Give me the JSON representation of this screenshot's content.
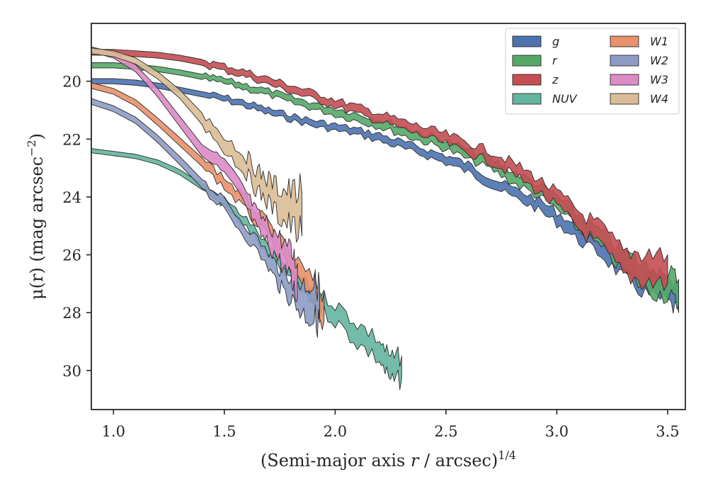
{
  "chart_data": {
    "type": "area",
    "xlabel_main": "(Semi-major axis ",
    "xlabel_var": "r",
    "xlabel_rest": " / arcsec)",
    "xlabel_sup": "1/4",
    "ylabel_main": "μ(r) (mag arcsec",
    "ylabel_sup": "−2",
    "ylabel_close": ")",
    "xlim": [
      0.9,
      3.58
    ],
    "ylim": [
      31.35,
      18.0
    ],
    "y_inverted": true,
    "xticks": [
      "1.0",
      "1.5",
      "2.0",
      "2.5",
      "3.0",
      "3.5"
    ],
    "yticks": [
      "20",
      "22",
      "24",
      "26",
      "28",
      "30"
    ],
    "legend_placement": "upper right, 2 columns",
    "series": [
      {
        "name": "g",
        "color": "#4c72b0",
        "x": [
          0.9,
          1.0,
          1.1,
          1.2,
          1.3,
          1.4,
          1.5,
          1.6,
          1.7,
          1.8,
          1.9,
          2.0,
          2.1,
          2.2,
          2.3,
          2.4,
          2.5,
          2.6,
          2.7,
          2.8,
          2.9,
          3.0,
          3.1,
          3.2,
          3.3,
          3.4,
          3.5,
          3.55
        ],
        "y": [
          20.0,
          20.0,
          20.05,
          20.15,
          20.3,
          20.45,
          20.6,
          20.8,
          21.05,
          21.25,
          21.45,
          21.6,
          21.75,
          21.95,
          22.2,
          22.45,
          22.7,
          23.0,
          23.45,
          23.85,
          24.2,
          24.7,
          25.3,
          25.75,
          26.5,
          27.0,
          27.3,
          27.6
        ],
        "w": [
          0.18,
          0.18,
          0.18,
          0.18,
          0.18,
          0.18,
          0.18,
          0.2,
          0.2,
          0.2,
          0.22,
          0.22,
          0.22,
          0.25,
          0.25,
          0.25,
          0.28,
          0.3,
          0.3,
          0.32,
          0.35,
          0.4,
          0.45,
          0.5,
          0.6,
          0.7,
          0.7,
          0.8
        ]
      },
      {
        "name": "r",
        "color": "#55a868",
        "x": [
          0.9,
          1.0,
          1.1,
          1.2,
          1.3,
          1.4,
          1.5,
          1.6,
          1.7,
          1.8,
          1.9,
          2.0,
          2.1,
          2.2,
          2.3,
          2.4,
          2.5,
          2.6,
          2.7,
          2.8,
          2.9,
          3.0,
          3.1,
          3.2,
          3.3,
          3.4,
          3.5,
          3.55
        ],
        "y": [
          19.45,
          19.45,
          19.5,
          19.58,
          19.7,
          19.85,
          20.0,
          20.2,
          20.4,
          20.65,
          20.85,
          21.05,
          21.25,
          21.45,
          21.7,
          21.95,
          22.2,
          22.55,
          22.85,
          23.3,
          23.7,
          24.2,
          24.9,
          25.5,
          26.2,
          26.8,
          27.0,
          27.3
        ],
        "w": [
          0.18,
          0.18,
          0.18,
          0.18,
          0.18,
          0.18,
          0.18,
          0.2,
          0.2,
          0.22,
          0.22,
          0.25,
          0.25,
          0.28,
          0.3,
          0.3,
          0.3,
          0.32,
          0.35,
          0.4,
          0.4,
          0.45,
          0.5,
          0.55,
          0.65,
          0.8,
          0.8,
          0.9
        ]
      },
      {
        "name": "z",
        "color": "#c44e52",
        "x": [
          0.9,
          1.0,
          1.1,
          1.2,
          1.3,
          1.4,
          1.5,
          1.6,
          1.7,
          1.8,
          1.9,
          2.0,
          2.1,
          2.2,
          2.3,
          2.4,
          2.5,
          2.6,
          2.7,
          2.8,
          2.9,
          3.0,
          3.1,
          3.2,
          3.3,
          3.4,
          3.5
        ],
        "y": [
          19.0,
          19.0,
          19.05,
          19.1,
          19.2,
          19.35,
          19.55,
          19.75,
          20.0,
          20.25,
          20.5,
          20.75,
          21.0,
          21.25,
          21.5,
          21.75,
          22.0,
          22.3,
          22.6,
          23.0,
          23.5,
          24.1,
          24.8,
          25.4,
          26.3,
          26.4,
          26.5
        ],
        "w": [
          0.2,
          0.2,
          0.2,
          0.2,
          0.2,
          0.2,
          0.22,
          0.22,
          0.24,
          0.25,
          0.25,
          0.26,
          0.28,
          0.3,
          0.3,
          0.32,
          0.35,
          0.35,
          0.38,
          0.4,
          0.45,
          0.5,
          0.6,
          0.7,
          0.8,
          1.0,
          1.0
        ]
      },
      {
        "name": "NUV",
        "color": "#64b5a0",
        "x": [
          0.9,
          1.0,
          1.1,
          1.2,
          1.3,
          1.4,
          1.5,
          1.6,
          1.7,
          1.8,
          1.9,
          2.0,
          2.1,
          2.2,
          2.25,
          2.3
        ],
        "y": [
          22.4,
          22.5,
          22.6,
          22.8,
          23.15,
          23.65,
          24.2,
          24.9,
          25.9,
          26.7,
          27.4,
          28.0,
          28.7,
          29.3,
          30.0,
          29.9
        ],
        "w": [
          0.15,
          0.15,
          0.15,
          0.16,
          0.18,
          0.2,
          0.25,
          0.3,
          0.35,
          0.4,
          0.5,
          0.6,
          0.7,
          0.7,
          0.8,
          0.8
        ]
      },
      {
        "name": "W1",
        "color": "#e8916a",
        "x": [
          0.9,
          1.0,
          1.1,
          1.2,
          1.3,
          1.4,
          1.5,
          1.6,
          1.7,
          1.8,
          1.9,
          1.95
        ],
        "y": [
          20.15,
          20.35,
          20.75,
          21.4,
          22.1,
          22.8,
          23.5,
          24.3,
          25.2,
          26.3,
          27.3,
          27.8
        ],
        "w": [
          0.2,
          0.2,
          0.22,
          0.25,
          0.28,
          0.3,
          0.35,
          0.4,
          0.5,
          0.6,
          0.8,
          1.0
        ]
      },
      {
        "name": "W2",
        "color": "#8c9cc4",
        "x": [
          0.9,
          1.0,
          1.1,
          1.2,
          1.3,
          1.4,
          1.5,
          1.6,
          1.7,
          1.75,
          1.8,
          1.85,
          1.9,
          1.93
        ],
        "y": [
          20.7,
          20.95,
          21.35,
          22.0,
          22.75,
          23.55,
          24.3,
          25.2,
          26.2,
          26.8,
          27.1,
          27.5,
          27.6,
          27.7
        ],
        "w": [
          0.2,
          0.2,
          0.22,
          0.25,
          0.28,
          0.3,
          0.35,
          0.4,
          0.5,
          0.6,
          0.8,
          1.0,
          1.2,
          1.3
        ]
      },
      {
        "name": "W3",
        "color": "#dd8bc6",
        "x": [
          0.9,
          1.0,
          1.1,
          1.2,
          1.3,
          1.4,
          1.5,
          1.6,
          1.65,
          1.7,
          1.75,
          1.8,
          1.83
        ],
        "y": [
          18.9,
          19.1,
          19.55,
          20.4,
          21.4,
          22.4,
          23.0,
          24.1,
          24.9,
          25.3,
          25.8,
          26.4,
          26.9
        ],
        "w": [
          0.18,
          0.2,
          0.25,
          0.3,
          0.35,
          0.4,
          0.45,
          0.5,
          0.6,
          0.7,
          0.8,
          1.0,
          1.2
        ]
      },
      {
        "name": "W4",
        "color": "#d9bc96",
        "x": [
          0.9,
          1.0,
          1.1,
          1.2,
          1.3,
          1.4,
          1.5,
          1.6,
          1.65,
          1.7,
          1.75,
          1.8,
          1.85
        ],
        "y": [
          18.95,
          19.05,
          19.3,
          19.8,
          20.45,
          21.3,
          22.1,
          22.9,
          23.45,
          23.8,
          24.2,
          24.4,
          24.6
        ],
        "w": [
          0.2,
          0.2,
          0.22,
          0.25,
          0.3,
          0.4,
          0.5,
          0.6,
          0.7,
          0.8,
          1.0,
          1.2,
          1.5
        ]
      }
    ]
  }
}
